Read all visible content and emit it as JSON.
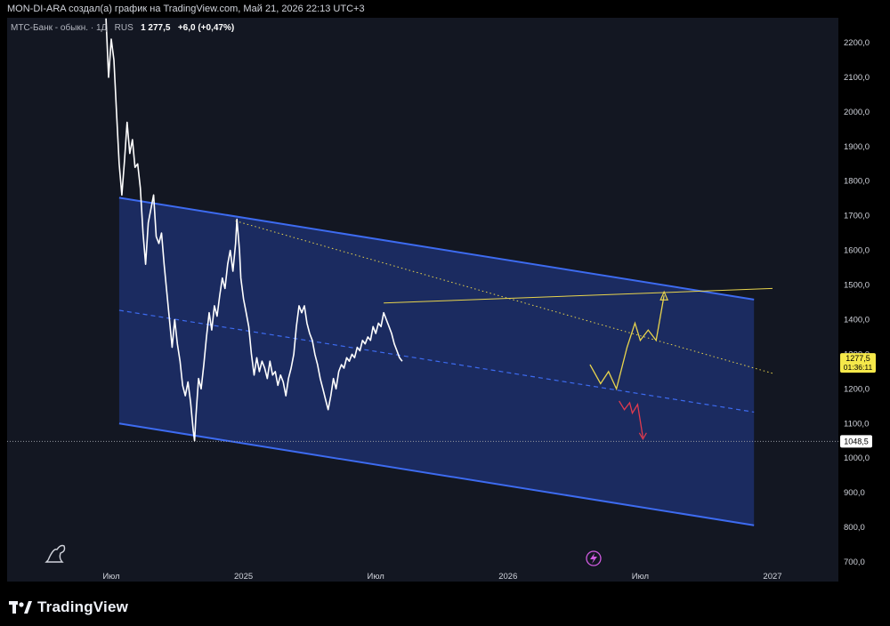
{
  "header": {
    "caption": "MON-DI-ARA создал(а) график на TradingView.com, Май 21, 2026 22:13 UTC+3"
  },
  "legend": {
    "symbol": "МТС-Банк - обыкн. · 1Д",
    "exchange": "RUS",
    "price": "1 277,5",
    "change": "+6,0 (+0,47%)"
  },
  "footer": {
    "brand": "TradingView"
  },
  "price_tag": {
    "price": "1277,5",
    "countdown": "01:36:11"
  },
  "low_tag": {
    "price": "1048,5"
  },
  "colors": {
    "background": "#131722",
    "channel_fill": "#1d2f6b",
    "channel_line": "#3d6bf0",
    "price_line": "#ffffff",
    "resistance": "#e8d44d",
    "scenario_up": "#e8d44d",
    "scenario_down": "#e03a4e",
    "tag_yellow": "#f5e84a"
  },
  "icons": {
    "brand_logo": "tradingview-logo-icon",
    "dino": "dino-icon",
    "flash": "flash-icon"
  },
  "chart_data": {
    "type": "line",
    "ylim": [
      670,
      2300
    ],
    "y_ticks": [
      700,
      800,
      900,
      1000,
      1100,
      1200,
      1300,
      1400,
      1500,
      1600,
      1700,
      1800,
      1900,
      2000,
      2100,
      2200
    ],
    "y_tick_labels": [
      "700,0",
      "800,0",
      "900,0",
      "1000,0",
      "1100,0",
      "1200,0",
      "1300,0",
      "1400,0",
      "1500,0",
      "1600,0",
      "1700,0",
      "1800,0",
      "1900,0",
      "2000,0",
      "2100,0",
      "2200,0"
    ],
    "x_labels": [
      {
        "t": 2024.5,
        "label": "Июл"
      },
      {
        "t": 2025.0,
        "label": "2025"
      },
      {
        "t": 2025.5,
        "label": "Июл"
      },
      {
        "t": 2026.0,
        "label": "2026"
      },
      {
        "t": 2026.5,
        "label": "Июл"
      },
      {
        "t": 2027.0,
        "label": "2027"
      }
    ],
    "xlim": [
      2024.45,
      2027.35
    ],
    "series": [
      {
        "values": [
          [
            2024.48,
            2270
          ],
          [
            2024.49,
            2100
          ],
          [
            2024.5,
            2210
          ],
          [
            2024.51,
            2150
          ],
          [
            2024.52,
            2000
          ],
          [
            2024.53,
            1850
          ],
          [
            2024.54,
            1760
          ],
          [
            2024.55,
            1860
          ],
          [
            2024.56,
            1970
          ],
          [
            2024.57,
            1880
          ],
          [
            2024.58,
            1920
          ],
          [
            2024.59,
            1840
          ],
          [
            2024.6,
            1850
          ],
          [
            2024.61,
            1780
          ],
          [
            2024.62,
            1650
          ],
          [
            2024.63,
            1560
          ],
          [
            2024.64,
            1680
          ],
          [
            2024.65,
            1720
          ],
          [
            2024.66,
            1760
          ],
          [
            2024.67,
            1640
          ],
          [
            2024.68,
            1620
          ],
          [
            2024.69,
            1650
          ],
          [
            2024.7,
            1560
          ],
          [
            2024.71,
            1480
          ],
          [
            2024.72,
            1400
          ],
          [
            2024.73,
            1320
          ],
          [
            2024.74,
            1400
          ],
          [
            2024.75,
            1330
          ],
          [
            2024.76,
            1280
          ],
          [
            2024.77,
            1210
          ],
          [
            2024.78,
            1180
          ],
          [
            2024.79,
            1220
          ],
          [
            2024.8,
            1160
          ],
          [
            2024.81,
            1080
          ],
          [
            2024.815,
            1050
          ],
          [
            2024.82,
            1120
          ],
          [
            2024.83,
            1230
          ],
          [
            2024.84,
            1200
          ],
          [
            2024.85,
            1270
          ],
          [
            2024.86,
            1350
          ],
          [
            2024.87,
            1420
          ],
          [
            2024.88,
            1370
          ],
          [
            2024.89,
            1440
          ],
          [
            2024.9,
            1410
          ],
          [
            2024.91,
            1470
          ],
          [
            2024.92,
            1520
          ],
          [
            2024.93,
            1490
          ],
          [
            2024.94,
            1560
          ],
          [
            2024.95,
            1600
          ],
          [
            2024.96,
            1540
          ],
          [
            2024.97,
            1620
          ],
          [
            2024.975,
            1690
          ],
          [
            2024.985,
            1600
          ],
          [
            2024.99,
            1520
          ],
          [
            2025.0,
            1460
          ],
          [
            2025.01,
            1420
          ],
          [
            2025.02,
            1380
          ],
          [
            2025.03,
            1300
          ],
          [
            2025.04,
            1240
          ],
          [
            2025.05,
            1290
          ],
          [
            2025.06,
            1250
          ],
          [
            2025.07,
            1280
          ],
          [
            2025.08,
            1260
          ],
          [
            2025.09,
            1230
          ],
          [
            2025.1,
            1280
          ],
          [
            2025.11,
            1240
          ],
          [
            2025.12,
            1250
          ],
          [
            2025.13,
            1210
          ],
          [
            2025.14,
            1240
          ],
          [
            2025.15,
            1220
          ],
          [
            2025.16,
            1180
          ],
          [
            2025.17,
            1230
          ],
          [
            2025.18,
            1260
          ],
          [
            2025.19,
            1300
          ],
          [
            2025.2,
            1380
          ],
          [
            2025.21,
            1440
          ],
          [
            2025.22,
            1420
          ],
          [
            2025.23,
            1440
          ],
          [
            2025.24,
            1390
          ],
          [
            2025.25,
            1360
          ],
          [
            2025.26,
            1340
          ],
          [
            2025.27,
            1300
          ],
          [
            2025.28,
            1270
          ],
          [
            2025.29,
            1230
          ],
          [
            2025.3,
            1200
          ],
          [
            2025.31,
            1170
          ],
          [
            2025.32,
            1140
          ],
          [
            2025.33,
            1180
          ],
          [
            2025.34,
            1230
          ],
          [
            2025.35,
            1200
          ],
          [
            2025.36,
            1250
          ],
          [
            2025.37,
            1270
          ],
          [
            2025.38,
            1260
          ],
          [
            2025.39,
            1290
          ],
          [
            2025.4,
            1280
          ],
          [
            2025.41,
            1300
          ],
          [
            2025.42,
            1290
          ],
          [
            2025.43,
            1320
          ],
          [
            2025.44,
            1310
          ],
          [
            2025.45,
            1340
          ],
          [
            2025.46,
            1330
          ],
          [
            2025.47,
            1350
          ],
          [
            2025.48,
            1340
          ],
          [
            2025.49,
            1380
          ],
          [
            2025.5,
            1360
          ],
          [
            2025.51,
            1390
          ],
          [
            2025.52,
            1380
          ],
          [
            2025.53,
            1420
          ],
          [
            2025.54,
            1400
          ],
          [
            2025.55,
            1380
          ],
          [
            2025.56,
            1360
          ],
          [
            2025.57,
            1330
          ],
          [
            2025.58,
            1310
          ],
          [
            2025.59,
            1290
          ],
          [
            2025.6,
            1280
          ]
        ]
      }
    ]
  }
}
